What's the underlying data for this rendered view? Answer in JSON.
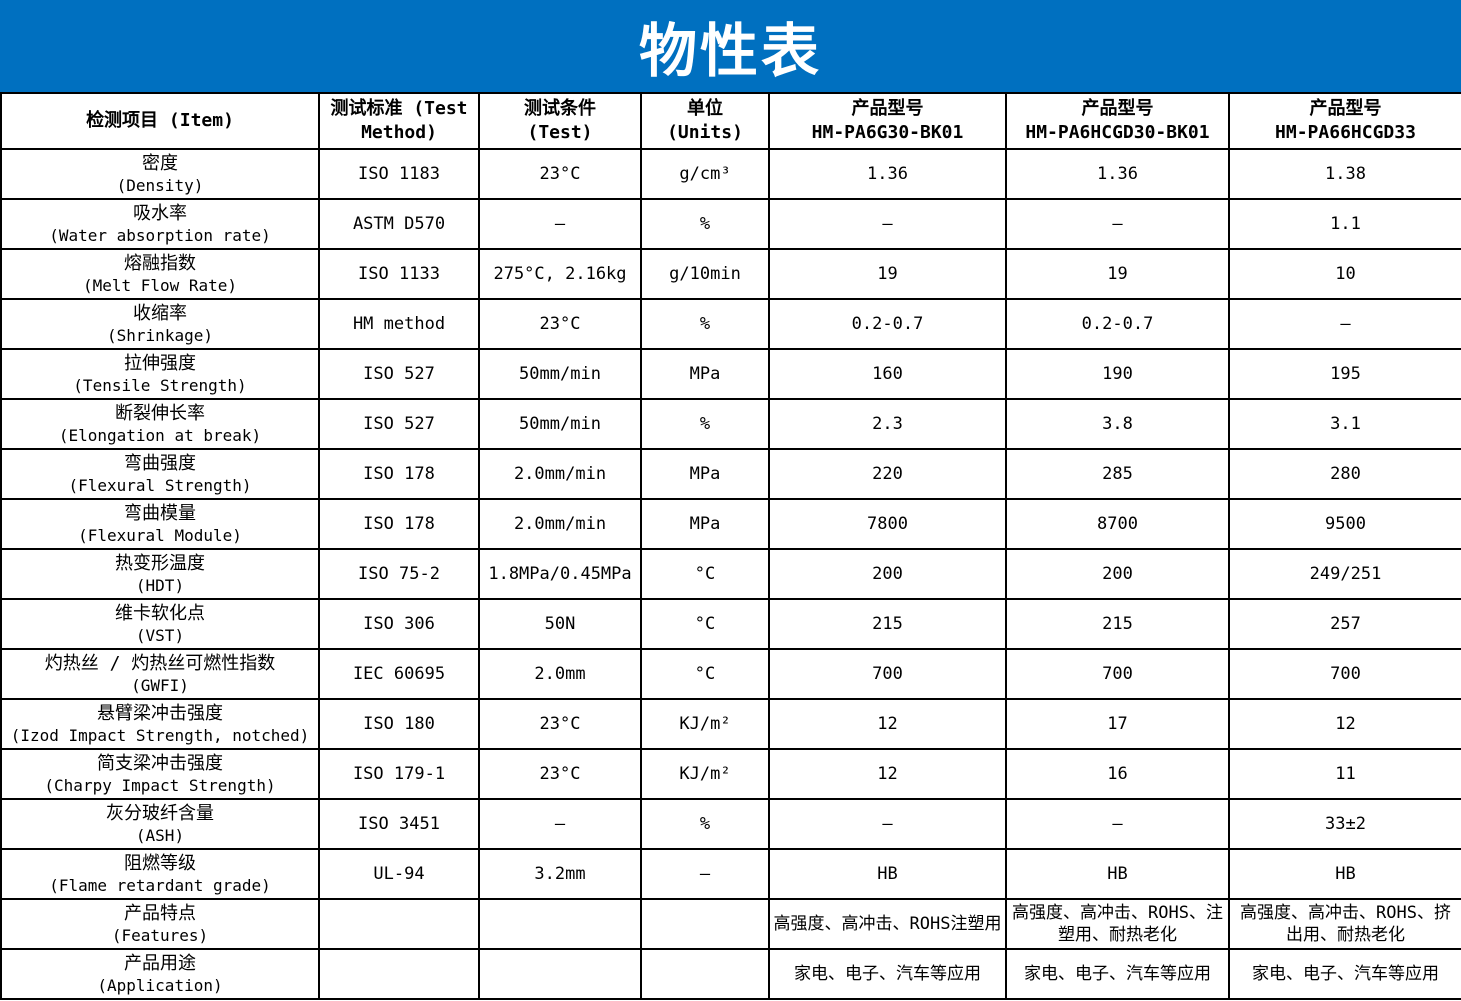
{
  "title": "物性表",
  "colors": {
    "banner_bg": "#0070C0",
    "banner_text": "#ffffff",
    "border": "#000000",
    "cell_bg": "#ffffff",
    "text": "#000000"
  },
  "table": {
    "header": {
      "item": "检测项目 (Item)",
      "method": [
        "测试标准 (Test",
        "Method)"
      ],
      "condition": [
        "测试条件",
        "(Test)"
      ],
      "units": [
        "单位",
        "(Units)"
      ],
      "products": [
        {
          "label": "产品型号",
          "model": "HM-PA6G30-BK01"
        },
        {
          "label": "产品型号",
          "model": "HM-PA6HCGD30-BK01"
        },
        {
          "label": "产品型号",
          "model": "HM-PA66HCGD33"
        }
      ]
    },
    "rows": [
      {
        "item_zh": "密度",
        "item_en": "(Density)",
        "standard": "ISO 1183",
        "condition": "23°C",
        "unit": "g/cm³",
        "v1": "1.36",
        "v2": "1.36",
        "v3": "1.38"
      },
      {
        "item_zh": "吸水率",
        "item_en": "(Water absorption rate)",
        "standard": "ASTM D570",
        "condition": "–",
        "unit": "%",
        "v1": "–",
        "v2": "–",
        "v3": "1.1"
      },
      {
        "item_zh": "熔融指数",
        "item_en": "(Melt Flow Rate)",
        "standard": "ISO 1133",
        "condition": "275°C, 2.16kg",
        "unit": "g/10min",
        "v1": "19",
        "v2": "19",
        "v3": "10"
      },
      {
        "item_zh": "收缩率",
        "item_en": "(Shrinkage)",
        "standard": "HM method",
        "condition": "23°C",
        "unit": "%",
        "v1": "0.2-0.7",
        "v2": "0.2-0.7",
        "v3": "–"
      },
      {
        "item_zh": "拉伸强度",
        "item_en": "(Tensile Strength)",
        "standard": "ISO 527",
        "condition": "50mm/min",
        "unit": "MPa",
        "v1": "160",
        "v2": "190",
        "v3": "195"
      },
      {
        "item_zh": "断裂伸长率",
        "item_en": "(Elongation at break)",
        "standard": "ISO 527",
        "condition": "50mm/min",
        "unit": "%",
        "v1": "2.3",
        "v2": "3.8",
        "v3": "3.1"
      },
      {
        "item_zh": "弯曲强度",
        "item_en": "(Flexural Strength)",
        "standard": "ISO 178",
        "condition": "2.0mm/min",
        "unit": "MPa",
        "v1": "220",
        "v2": "285",
        "v3": "280"
      },
      {
        "item_zh": "弯曲模量",
        "item_en": "(Flexural Module)",
        "standard": "ISO 178",
        "condition": "2.0mm/min",
        "unit": "MPa",
        "v1": "7800",
        "v2": "8700",
        "v3": "9500"
      },
      {
        "item_zh": "热变形温度",
        "item_en": "(HDT)",
        "standard": "ISO 75-2",
        "condition": "1.8MPa/0.45MPa",
        "unit": "°C",
        "v1": "200",
        "v2": "200",
        "v3": "249/251"
      },
      {
        "item_zh": "维卡软化点",
        "item_en": "(VST)",
        "standard": "ISO 306",
        "condition": "50N",
        "unit": "°C",
        "v1": "215",
        "v2": "215",
        "v3": "257"
      },
      {
        "item_zh": "灼热丝 / 灼热丝可燃性指数",
        "item_en": "(GWFI)",
        "standard": "IEC 60695",
        "condition": "2.0mm",
        "unit": "°C",
        "v1": "700",
        "v2": "700",
        "v3": "700"
      },
      {
        "item_zh": "悬臂梁冲击强度",
        "item_en": "(Izod Impact Strength, notched)",
        "standard": "ISO 180",
        "condition": "23°C",
        "unit": "KJ/m²",
        "v1": "12",
        "v2": "17",
        "v3": "12"
      },
      {
        "item_zh": "简支梁冲击强度",
        "item_en": "(Charpy Impact Strength)",
        "standard": "ISO 179-1",
        "condition": "23°C",
        "unit": "KJ/m²",
        "v1": "12",
        "v2": "16",
        "v3": "11"
      },
      {
        "item_zh": "灰分玻纤含量",
        "item_en": "(ASH)",
        "standard": "ISO 3451",
        "condition": "–",
        "unit": "%",
        "v1": "–",
        "v2": "–",
        "v3": "33±2"
      },
      {
        "item_zh": "阻燃等级",
        "item_en": "(Flame retardant grade)",
        "standard": "UL-94",
        "condition": "3.2mm",
        "unit": "–",
        "v1": "HB",
        "v2": "HB",
        "v3": "HB"
      },
      {
        "item_zh": "产品特点",
        "item_en": "(Features)",
        "standard": "",
        "condition": "",
        "unit": "",
        "v1": "高强度、高冲击、ROHS注塑用",
        "v2": "高强度、高冲击、ROHS、注塑用、耐热老化",
        "v3": "高强度、高冲击、ROHS、挤出用、耐热老化"
      },
      {
        "item_zh": "产品用途",
        "item_en": "(Application)",
        "standard": "",
        "condition": "",
        "unit": "",
        "v1": "家电、电子、汽车等应用",
        "v2": "家电、电子、汽车等应用",
        "v3": "家电、电子、汽车等应用"
      }
    ]
  }
}
